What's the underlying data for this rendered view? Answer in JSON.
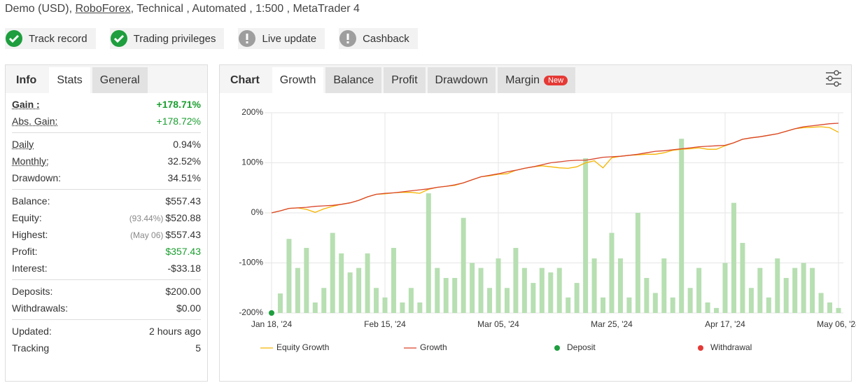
{
  "header": {
    "account": "Demo (USD),",
    "broker": "RoboForex",
    "details": ", Technical , Automated , 1:500 , MetaTrader 4"
  },
  "badges": [
    {
      "label": "Track record",
      "verified": true
    },
    {
      "label": "Trading privileges",
      "verified": true
    },
    {
      "label": "Live update",
      "verified": false
    },
    {
      "label": "Cashback",
      "verified": false
    }
  ],
  "left_tabs": {
    "items": [
      "Info",
      "Stats",
      "General"
    ],
    "active": 1
  },
  "stats": [
    [
      {
        "label": "Gain :",
        "value": "+178.71%",
        "bold": true,
        "underline": true,
        "highlight": true
      },
      {
        "label": "Abs. Gain:",
        "value": "+178.72%",
        "underline": true,
        "highlight": true
      }
    ],
    [
      {
        "label": "Daily",
        "value": "0.94%",
        "underline": true
      },
      {
        "label": "Monthly:",
        "value": "32.52%",
        "underline": true
      },
      {
        "label": "Drawdown:",
        "value": "34.51%"
      }
    ],
    [
      {
        "label": "Balance:",
        "value": "$557.43"
      },
      {
        "label": "Equity:",
        "note": "(93.44%)",
        "value": "$520.88"
      },
      {
        "label": "Highest:",
        "note": "(May 06)",
        "value": "$557.43"
      },
      {
        "label": "Profit:",
        "value": "$357.43",
        "highlight": true
      },
      {
        "label": "Interest:",
        "value": "-$33.18"
      }
    ],
    [
      {
        "label": "Deposits:",
        "value": "$200.00"
      },
      {
        "label": "Withdrawals:",
        "value": "$0.00"
      }
    ],
    [
      {
        "label": "Updated:",
        "value": "2 hours ago"
      },
      {
        "label": "Tracking",
        "value": "5"
      }
    ]
  ],
  "chart_tabs": {
    "label": "Chart",
    "items": [
      "Growth",
      "Balance",
      "Profit",
      "Drawdown",
      "Margin"
    ],
    "active": 0,
    "badge": "New"
  },
  "chart_data": {
    "type": "line",
    "categories": [
      "Jan 18, '24",
      null,
      null,
      null,
      null,
      null,
      null,
      null,
      null,
      null,
      null,
      null,
      null,
      "Feb 15, '24",
      null,
      null,
      null,
      null,
      null,
      null,
      null,
      null,
      null,
      null,
      null,
      null,
      "Mar 05, '24",
      null,
      null,
      null,
      null,
      null,
      null,
      null,
      null,
      null,
      null,
      null,
      null,
      "Mar 25, '24",
      null,
      null,
      null,
      null,
      null,
      null,
      null,
      null,
      null,
      null,
      null,
      null,
      "Apr 17, '24",
      null,
      null,
      null,
      null,
      null,
      null,
      null,
      null,
      null,
      null,
      null,
      null,
      "May 06, '24"
    ],
    "ylim": [
      -200,
      200
    ],
    "yticks": [
      {
        "value": -200,
        "label": "-200%"
      },
      {
        "value": -100,
        "label": "-100%"
      },
      {
        "value": 0,
        "label": "0%"
      },
      {
        "value": 100,
        "label": "100%"
      },
      {
        "value": 200,
        "label": "200%"
      }
    ],
    "grid": true,
    "bars": {
      "color": "#b7dfb2",
      "values": [
        null,
        -161,
        -52,
        -110,
        -70,
        -179,
        -150,
        -40,
        -81,
        -119,
        -110,
        -81,
        -150,
        -169,
        -70,
        -179,
        -150,
        -179,
        39,
        -110,
        -130,
        -130,
        -10,
        -100,
        -110,
        -150,
        -91,
        -150,
        -70,
        -110,
        -140,
        -110,
        -119,
        -110,
        -169,
        -140,
        109,
        -91,
        -169,
        -40,
        -91,
        -169,
        0,
        -130,
        -160,
        -91,
        -169,
        148,
        -150,
        -110,
        -179,
        -190,
        -100,
        20,
        -60,
        -150,
        -110,
        -169,
        -91,
        -130,
        -110,
        -100,
        -110,
        -160,
        -179,
        -190
      ]
    },
    "series": [
      {
        "name": "Equity Growth",
        "color": "#f5b400",
        "kind": "line",
        "values": [
          0,
          4,
          9,
          10,
          7,
          1,
          8,
          13,
          17,
          20,
          25,
          32,
          37,
          38,
          40,
          41,
          41,
          39,
          47,
          51,
          53,
          55,
          60,
          66,
          72,
          74,
          77,
          78,
          85,
          89,
          92,
          94,
          92,
          90,
          89,
          92,
          100,
          104,
          90,
          110,
          113,
          115,
          116,
          117,
          117,
          120,
          125,
          127,
          128,
          130,
          127,
          127,
          134,
          140,
          147,
          150,
          152,
          155,
          158,
          163,
          168,
          170,
          171,
          172,
          170,
          161
        ]
      },
      {
        "name": "Growth",
        "color": "#d9452b",
        "kind": "line",
        "values": [
          0,
          4,
          9,
          10,
          11,
          13,
          14,
          15,
          17,
          20,
          25,
          32,
          37,
          39,
          40,
          42,
          44,
          46,
          48,
          51,
          53,
          56,
          60,
          66,
          72,
          75,
          78,
          82,
          85,
          89,
          92,
          96,
          100,
          102,
          104,
          105,
          105,
          108,
          111,
          112,
          113,
          115,
          117,
          120,
          123,
          124,
          126,
          128,
          130,
          132,
          133,
          134,
          135,
          140,
          147,
          150,
          152,
          155,
          158,
          163,
          168,
          172,
          174,
          176,
          178,
          179
        ]
      },
      {
        "name": "Deposit",
        "color": "#1e9e3e",
        "kind": "dot",
        "values": [
          -200,
          null,
          null,
          null,
          null,
          null,
          null,
          null,
          null,
          null,
          null,
          null,
          null,
          null,
          null,
          null,
          null,
          null,
          null,
          null,
          null,
          null,
          null,
          null,
          null,
          null,
          null,
          null,
          null,
          null,
          null,
          null,
          null,
          null,
          null,
          null,
          null,
          null,
          null,
          null,
          null,
          null,
          null,
          null,
          null,
          null,
          null,
          null,
          null,
          null,
          null,
          null,
          null,
          null,
          null,
          null,
          null,
          null,
          null,
          null,
          null,
          null,
          null,
          null,
          null,
          null
        ]
      },
      {
        "name": "Withdrawal",
        "color": "#e53935",
        "kind": "dot",
        "values": [
          null,
          null,
          null,
          null,
          null,
          null,
          null,
          null,
          null,
          null,
          null,
          null,
          null,
          null,
          null,
          null,
          null,
          null,
          null,
          null,
          null,
          null,
          null,
          null,
          null,
          null,
          null,
          null,
          null,
          null,
          null,
          null,
          null,
          null,
          null,
          null,
          null,
          null,
          null,
          null,
          null,
          null,
          null,
          null,
          null,
          null,
          null,
          null,
          null,
          null,
          null,
          null,
          null,
          null,
          null,
          null,
          null,
          null,
          null,
          null,
          null,
          null,
          null,
          null,
          null,
          null
        ]
      }
    ]
  }
}
